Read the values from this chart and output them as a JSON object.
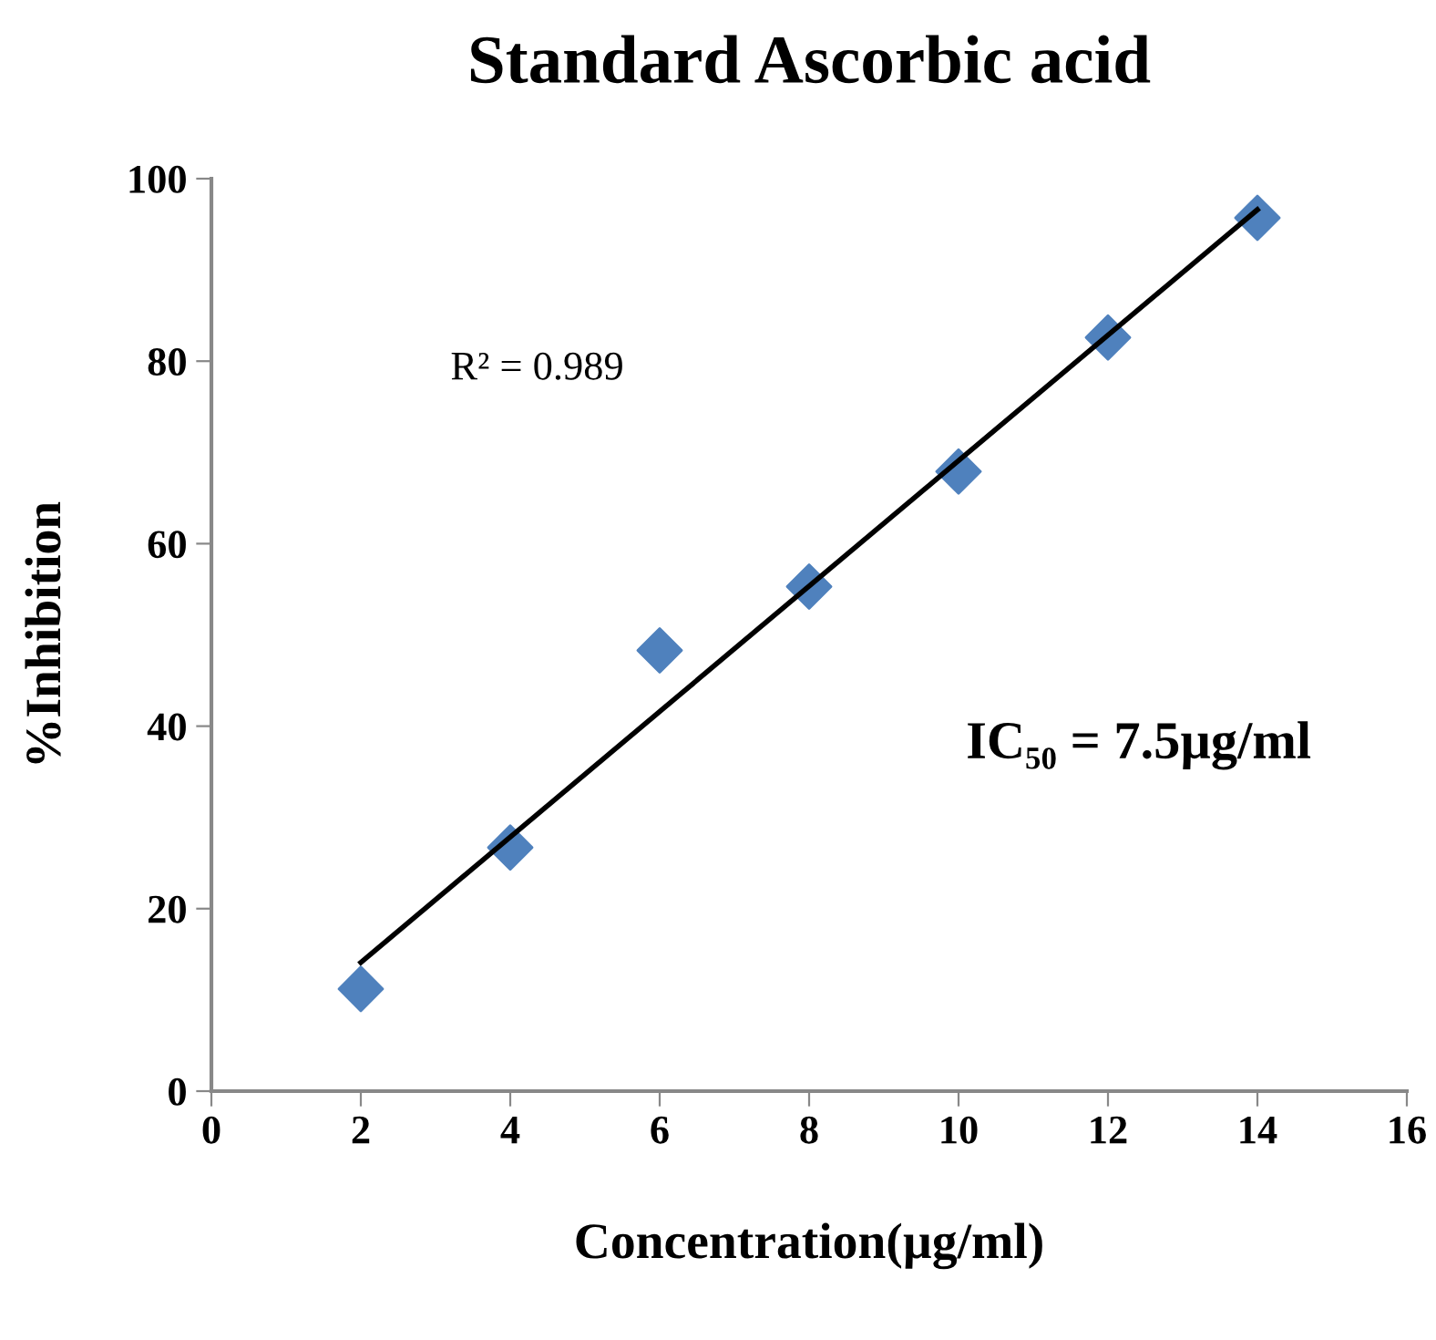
{
  "chart_data": {
    "type": "scatter",
    "title": "Standard Ascorbic acid",
    "xlabel": "Concentration(µg/ml)",
    "ylabel": "%Inhibition",
    "x": [
      2,
      4,
      6,
      8,
      10,
      12,
      14
    ],
    "series": [
      {
        "color": "#4f81bd",
        "marker": "diamond",
        "values": [
          11.2,
          26.7,
          48.3,
          55.3,
          67.9,
          82.6,
          95.7
        ]
      },
      {
        "type": "line",
        "color": "#000000",
        "x": [
          2,
          14
        ],
        "values": [
          14.1,
          96.6
        ],
        "marker": "none",
        "line_style": "solid"
      }
    ],
    "annotations": [
      "R² = 0.989",
      "IC₅₀ = 7.5µg/ml"
    ],
    "xlim": [
      0,
      16
    ],
    "xticks": [
      0,
      2,
      4,
      6,
      8,
      10,
      12,
      14,
      16
    ],
    "ylim": [
      0,
      100
    ],
    "yticks": [
      0,
      20,
      40,
      60,
      80,
      100
    ],
    "grid": false,
    "legend": false
  }
}
